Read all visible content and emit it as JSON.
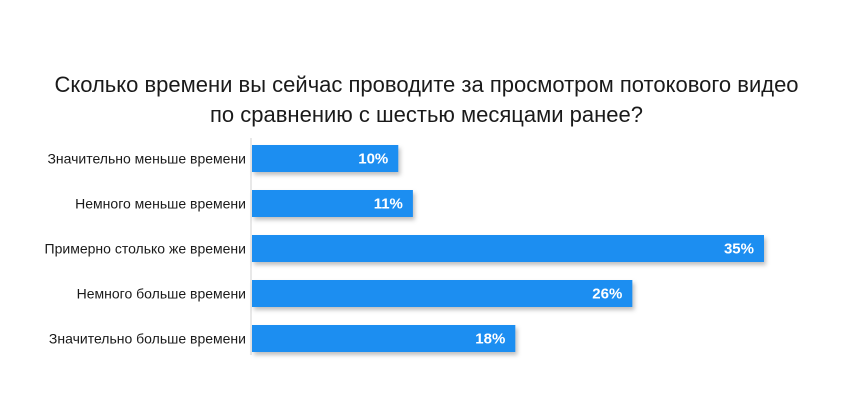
{
  "chart_data": {
    "type": "bar",
    "orientation": "horizontal",
    "title": "Сколько времени вы сейчас проводите за просмотром потокового видео\nпо сравнению с шестью месяцами ранее?",
    "categories": [
      "Значительно меньше времени",
      "Немного меньше времени",
      "Примерно столько же времени",
      "Немного больше времени",
      "Значительно больше времени"
    ],
    "values": [
      10,
      11,
      35,
      26,
      18
    ],
    "value_labels": [
      "10%",
      "11%",
      "35%",
      "26%",
      "18%"
    ],
    "xlim": [
      0,
      35
    ],
    "grid": false,
    "bar_color": "#1f8ef1"
  }
}
